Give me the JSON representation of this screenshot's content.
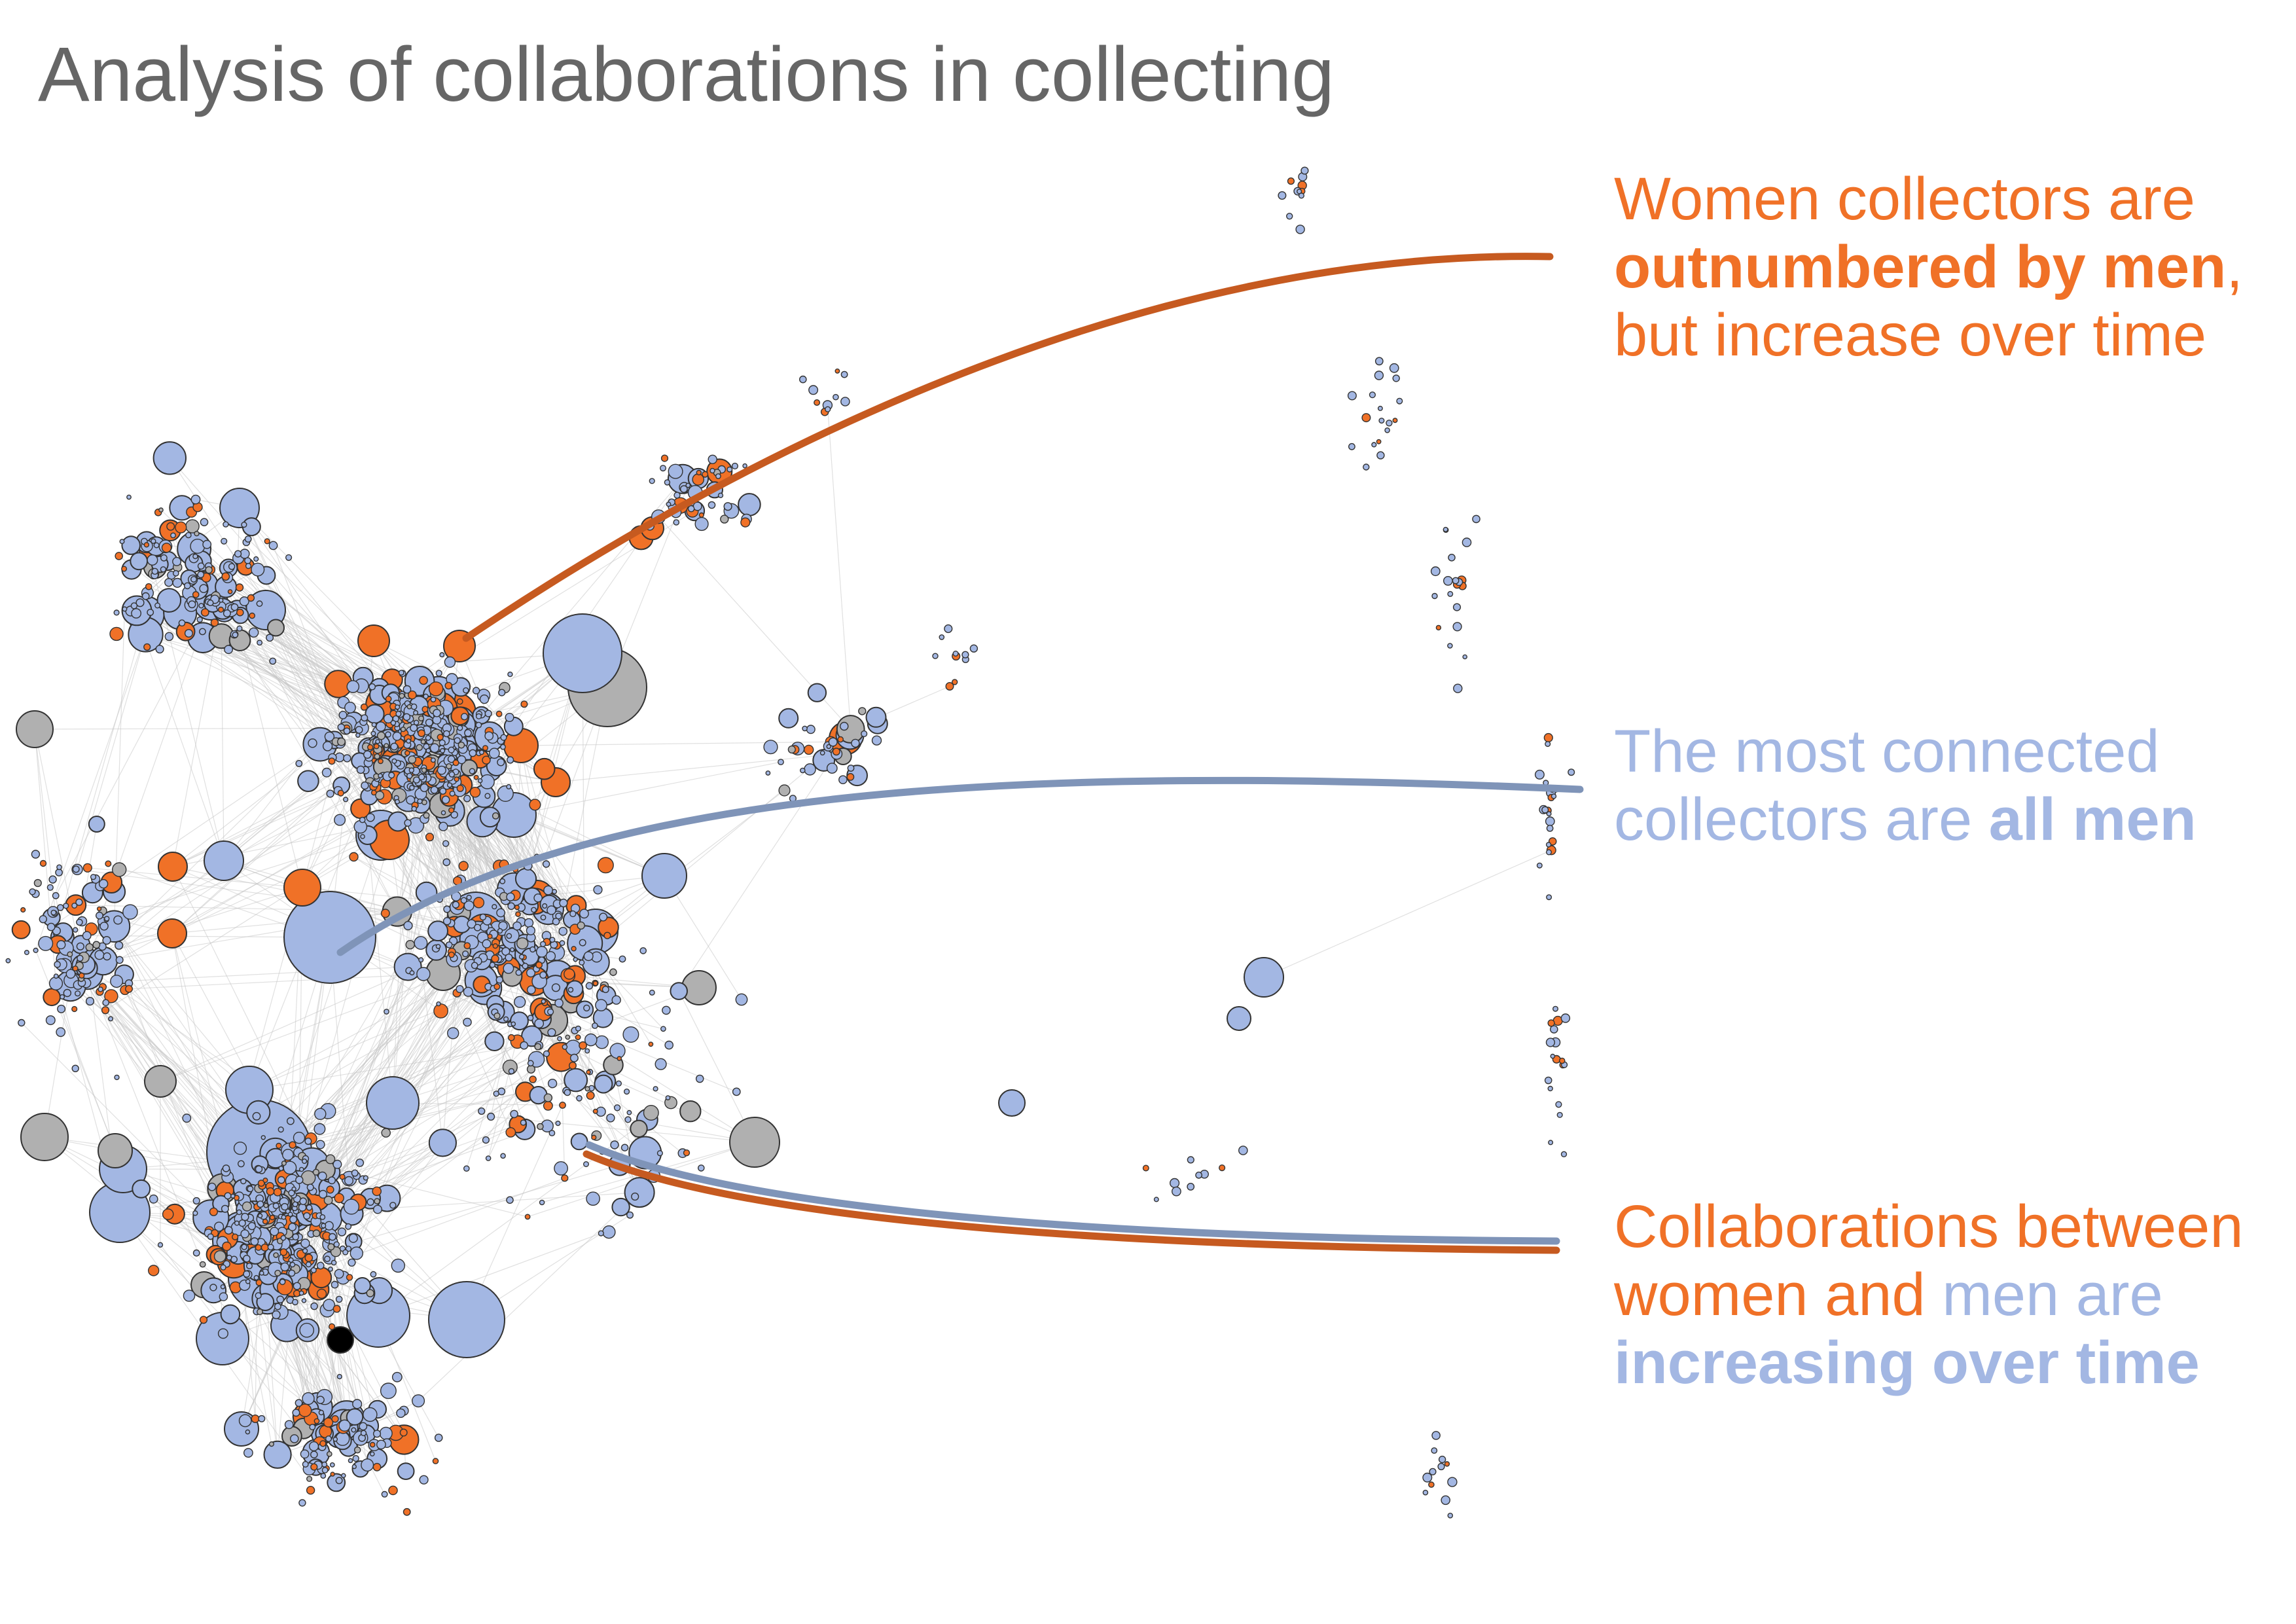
{
  "title": "Analysis of collaborations in collecting",
  "colors": {
    "women": "#f07127",
    "women_line": "#c65a20",
    "men": "#a3b7e3",
    "men_line": "#7f94b8",
    "unknown": "#b0b0b0",
    "title": "#666666",
    "edges": "#c7c7c7",
    "special_node": "#000000"
  },
  "node_categories": [
    "women",
    "men",
    "unknown"
  ],
  "annotations": {
    "women": {
      "parts": [
        {
          "text": "Women collectors are ",
          "color": "#f07127",
          "bold": false
        },
        {
          "text": "outnumbered by men",
          "color": "#f07127",
          "bold": true
        },
        {
          "text": ", but increase over time",
          "color": "#f07127",
          "bold": false
        }
      ]
    },
    "connected": {
      "parts": [
        {
          "text": "The most connected collectors are ",
          "color": "#a3b7e3",
          "bold": false
        },
        {
          "text": "all men",
          "color": "#a3b7e3",
          "bold": true
        }
      ]
    },
    "mixed": {
      "parts": [
        {
          "text": "Collaborations between women and ",
          "color": "#f07127",
          "bold": false
        },
        {
          "text": "men are ",
          "color": "#a3b7e3",
          "bold": false
        },
        {
          "text": "increasing over time",
          "color": "#a3b7e3",
          "bold": true
        }
      ]
    }
  }
}
